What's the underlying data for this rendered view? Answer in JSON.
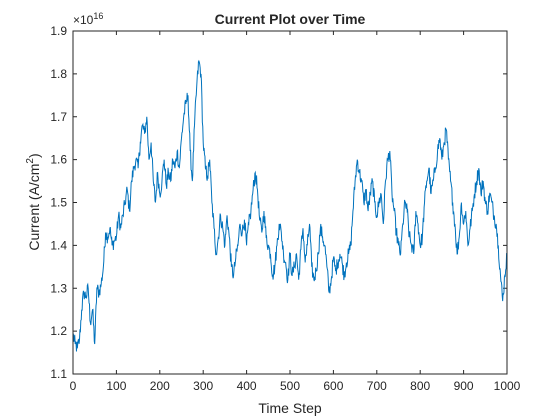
{
  "chart_data": {
    "type": "line",
    "title": "Current Plot over Time",
    "xlabel": "Time Step",
    "ylabel_main": "Current (A/cm",
    "ylabel_sup": "2",
    "ylabel_close": ")",
    "exponent_base": "×10",
    "exponent_power": "16",
    "xlim": [
      0,
      1000
    ],
    "ylim": [
      1.1,
      1.9
    ],
    "x_ticks": [
      "0",
      "100",
      "200",
      "300",
      "400",
      "500",
      "600",
      "700",
      "800",
      "900",
      "1000"
    ],
    "y_ticks": [
      "1.1",
      "1.2",
      "1.3",
      "1.4",
      "1.5",
      "1.6",
      "1.7",
      "1.8",
      "1.9"
    ],
    "grid": false,
    "line_color": "#0072BD",
    "keypoints": [
      [
        0,
        1.19
      ],
      [
        5,
        1.17
      ],
      [
        10,
        1.16
      ],
      [
        15,
        1.18
      ],
      [
        20,
        1.25
      ],
      [
        25,
        1.29
      ],
      [
        30,
        1.28
      ],
      [
        35,
        1.3
      ],
      [
        40,
        1.22
      ],
      [
        45,
        1.25
      ],
      [
        50,
        1.17
      ],
      [
        55,
        1.3
      ],
      [
        60,
        1.29
      ],
      [
        65,
        1.31
      ],
      [
        70,
        1.35
      ],
      [
        75,
        1.43
      ],
      [
        80,
        1.42
      ],
      [
        85,
        1.44
      ],
      [
        90,
        1.4
      ],
      [
        95,
        1.41
      ],
      [
        100,
        1.42
      ],
      [
        105,
        1.47
      ],
      [
        110,
        1.44
      ],
      [
        115,
        1.47
      ],
      [
        120,
        1.5
      ],
      [
        125,
        1.53
      ],
      [
        130,
        1.48
      ],
      [
        135,
        1.55
      ],
      [
        140,
        1.58
      ],
      [
        145,
        1.6
      ],
      [
        150,
        1.58
      ],
      [
        155,
        1.64
      ],
      [
        160,
        1.68
      ],
      [
        165,
        1.66
      ],
      [
        170,
        1.7
      ],
      [
        175,
        1.6
      ],
      [
        180,
        1.64
      ],
      [
        185,
        1.55
      ],
      [
        190,
        1.5
      ],
      [
        195,
        1.57
      ],
      [
        200,
        1.52
      ],
      [
        205,
        1.55
      ],
      [
        210,
        1.6
      ],
      [
        215,
        1.54
      ],
      [
        220,
        1.57
      ],
      [
        225,
        1.55
      ],
      [
        230,
        1.6
      ],
      [
        235,
        1.58
      ],
      [
        240,
        1.62
      ],
      [
        245,
        1.58
      ],
      [
        250,
        1.65
      ],
      [
        255,
        1.7
      ],
      [
        260,
        1.73
      ],
      [
        265,
        1.75
      ],
      [
        270,
        1.62
      ],
      [
        275,
        1.55
      ],
      [
        280,
        1.68
      ],
      [
        285,
        1.77
      ],
      [
        290,
        1.83
      ],
      [
        295,
        1.8
      ],
      [
        300,
        1.64
      ],
      [
        305,
        1.58
      ],
      [
        310,
        1.56
      ],
      [
        315,
        1.6
      ],
      [
        320,
        1.5
      ],
      [
        325,
        1.44
      ],
      [
        330,
        1.38
      ],
      [
        335,
        1.42
      ],
      [
        340,
        1.47
      ],
      [
        345,
        1.44
      ],
      [
        350,
        1.4
      ],
      [
        355,
        1.47
      ],
      [
        360,
        1.42
      ],
      [
        365,
        1.35
      ],
      [
        370,
        1.33
      ],
      [
        375,
        1.37
      ],
      [
        380,
        1.4
      ],
      [
        385,
        1.45
      ],
      [
        390,
        1.43
      ],
      [
        395,
        1.46
      ],
      [
        400,
        1.4
      ],
      [
        405,
        1.45
      ],
      [
        410,
        1.48
      ],
      [
        415,
        1.53
      ],
      [
        420,
        1.57
      ],
      [
        425,
        1.53
      ],
      [
        430,
        1.46
      ],
      [
        435,
        1.43
      ],
      [
        440,
        1.48
      ],
      [
        445,
        1.42
      ],
      [
        450,
        1.4
      ],
      [
        455,
        1.38
      ],
      [
        460,
        1.33
      ],
      [
        465,
        1.35
      ],
      [
        470,
        1.4
      ],
      [
        475,
        1.45
      ],
      [
        480,
        1.43
      ],
      [
        485,
        1.38
      ],
      [
        490,
        1.36
      ],
      [
        495,
        1.32
      ],
      [
        500,
        1.38
      ],
      [
        505,
        1.33
      ],
      [
        510,
        1.35
      ],
      [
        515,
        1.38
      ],
      [
        520,
        1.32
      ],
      [
        525,
        1.39
      ],
      [
        530,
        1.44
      ],
      [
        535,
        1.36
      ],
      [
        540,
        1.4
      ],
      [
        545,
        1.45
      ],
      [
        550,
        1.35
      ],
      [
        555,
        1.32
      ],
      [
        560,
        1.34
      ],
      [
        565,
        1.38
      ],
      [
        570,
        1.44
      ],
      [
        575,
        1.42
      ],
      [
        580,
        1.4
      ],
      [
        585,
        1.35
      ],
      [
        590,
        1.29
      ],
      [
        595,
        1.32
      ],
      [
        600,
        1.37
      ],
      [
        605,
        1.34
      ],
      [
        610,
        1.36
      ],
      [
        615,
        1.38
      ],
      [
        620,
        1.36
      ],
      [
        625,
        1.33
      ],
      [
        630,
        1.36
      ],
      [
        635,
        1.38
      ],
      [
        640,
        1.4
      ],
      [
        645,
        1.48
      ],
      [
        650,
        1.55
      ],
      [
        655,
        1.6
      ],
      [
        660,
        1.57
      ],
      [
        665,
        1.55
      ],
      [
        670,
        1.5
      ],
      [
        675,
        1.53
      ],
      [
        680,
        1.48
      ],
      [
        685,
        1.52
      ],
      [
        690,
        1.55
      ],
      [
        695,
        1.5
      ],
      [
        700,
        1.47
      ],
      [
        705,
        1.5
      ],
      [
        710,
        1.52
      ],
      [
        715,
        1.45
      ],
      [
        720,
        1.55
      ],
      [
        725,
        1.6
      ],
      [
        730,
        1.62
      ],
      [
        735,
        1.52
      ],
      [
        740,
        1.48
      ],
      [
        745,
        1.43
      ],
      [
        750,
        1.4
      ],
      [
        755,
        1.38
      ],
      [
        760,
        1.45
      ],
      [
        765,
        1.5
      ],
      [
        770,
        1.48
      ],
      [
        775,
        1.42
      ],
      [
        780,
        1.4
      ],
      [
        785,
        1.38
      ],
      [
        790,
        1.48
      ],
      [
        795,
        1.45
      ],
      [
        800,
        1.4
      ],
      [
        805,
        1.42
      ],
      [
        810,
        1.5
      ],
      [
        815,
        1.55
      ],
      [
        820,
        1.58
      ],
      [
        825,
        1.52
      ],
      [
        830,
        1.55
      ],
      [
        835,
        1.58
      ],
      [
        840,
        1.62
      ],
      [
        845,
        1.65
      ],
      [
        850,
        1.6
      ],
      [
        855,
        1.64
      ],
      [
        860,
        1.67
      ],
      [
        865,
        1.6
      ],
      [
        870,
        1.55
      ],
      [
        875,
        1.5
      ],
      [
        880,
        1.45
      ],
      [
        885,
        1.38
      ],
      [
        890,
        1.42
      ],
      [
        895,
        1.5
      ],
      [
        900,
        1.45
      ],
      [
        905,
        1.48
      ],
      [
        910,
        1.4
      ],
      [
        915,
        1.44
      ],
      [
        920,
        1.48
      ],
      [
        925,
        1.52
      ],
      [
        930,
        1.55
      ],
      [
        935,
        1.58
      ],
      [
        940,
        1.52
      ],
      [
        945,
        1.55
      ],
      [
        950,
        1.5
      ],
      [
        955,
        1.48
      ],
      [
        960,
        1.52
      ],
      [
        965,
        1.5
      ],
      [
        970,
        1.47
      ],
      [
        975,
        1.45
      ],
      [
        980,
        1.4
      ],
      [
        985,
        1.33
      ],
      [
        990,
        1.27
      ],
      [
        995,
        1.33
      ],
      [
        1000,
        1.38
      ]
    ]
  }
}
